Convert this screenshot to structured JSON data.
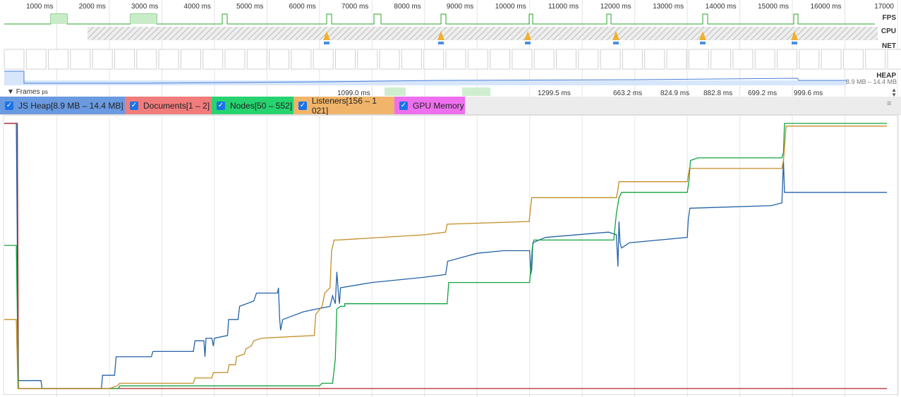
{
  "timeline": {
    "time_ticks": [
      "1000 ms",
      "2000 ms",
      "3000 ms",
      "4000 ms",
      "5000 ms",
      "6000 ms",
      "7000 ms",
      "8000 ms",
      "9000 ms",
      "10000 ms",
      "11000 ms",
      "12000 ms",
      "13000 ms",
      "14000 ms",
      "15000 ms",
      "16000 ms",
      "17000"
    ],
    "rows": {
      "fps": "FPS",
      "cpu": "CPU",
      "net": "NET",
      "heap": "HEAP"
    },
    "heap_range": "8.9 MB – 14.4 MB",
    "frames_label": "Frames",
    "frames_unit": "ps",
    "frame_times": [
      "1099.0 ms",
      "1299.5 ms",
      "663.2 ms",
      "824.9 ms",
      "882.8 ms",
      "699.2 ms",
      "999.6 ms"
    ]
  },
  "legend": {
    "items": [
      {
        "label": "JS Heap[8.9 MB – 14.4 MB]",
        "color": "#6a9ae0"
      },
      {
        "label": "Documents[1 – 2]",
        "color": "#f07c7c"
      },
      {
        "label": "Nodes[50 – 552]",
        "color": "#27d36f"
      },
      {
        "label": "Listeners[156 – 1 021]",
        "color": "#f0b46a"
      },
      {
        "label": "GPU Memory",
        "color": "#ee70ee"
      }
    ],
    "menu_icon": "menu-icon"
  },
  "chart_data": {
    "type": "line",
    "x_unit": "ms",
    "xlim": [
      0,
      17000
    ],
    "series": [
      {
        "name": "JS Heap",
        "color": "#2463a8",
        "range": [
          8.9,
          14.4
        ],
        "points": [
          [
            0,
            1
          ],
          [
            230,
            1
          ],
          [
            270,
            0.03
          ],
          [
            700,
            0.03
          ],
          [
            720,
            0.0
          ],
          [
            1500,
            0.0
          ],
          [
            1850,
            0.0
          ],
          [
            1870,
            0.05
          ],
          [
            2100,
            0.05
          ],
          [
            2130,
            0.12
          ],
          [
            2800,
            0.12
          ],
          [
            2830,
            0.14
          ],
          [
            3600,
            0.14
          ],
          [
            3630,
            0.18
          ],
          [
            3800,
            0.18
          ],
          [
            3820,
            0.12
          ],
          [
            3840,
            0.19
          ],
          [
            3950,
            0.19
          ],
          [
            3980,
            0.16
          ],
          [
            4000,
            0.19
          ],
          [
            4250,
            0.2
          ],
          [
            4270,
            0.26
          ],
          [
            4450,
            0.26
          ],
          [
            4480,
            0.31
          ],
          [
            4750,
            0.33
          ],
          [
            4800,
            0.36
          ],
          [
            5200,
            0.36
          ],
          [
            5220,
            0.38
          ],
          [
            5240,
            0.27
          ],
          [
            5260,
            0.22
          ],
          [
            5300,
            0.26
          ],
          [
            5700,
            0.29
          ],
          [
            6200,
            0.31
          ],
          [
            6250,
            0.35
          ],
          [
            6300,
            0.32
          ],
          [
            6330,
            0.44
          ],
          [
            6360,
            0.36
          ],
          [
            6380,
            0.32
          ],
          [
            6400,
            0.38
          ],
          [
            7000,
            0.4
          ],
          [
            8000,
            0.42
          ],
          [
            8400,
            0.43
          ],
          [
            8440,
            0.48
          ],
          [
            9000,
            0.51
          ],
          [
            9500,
            0.52
          ],
          [
            10000,
            0.52
          ],
          [
            10020,
            0.43
          ],
          [
            10040,
            0.45
          ],
          [
            10060,
            0.55
          ],
          [
            10300,
            0.57
          ],
          [
            11500,
            0.59
          ],
          [
            11650,
            0.58
          ],
          [
            11680,
            0.46
          ],
          [
            11700,
            0.63
          ],
          [
            11720,
            0.55
          ],
          [
            11750,
            0.53
          ],
          [
            11900,
            0.55
          ],
          [
            13000,
            0.57
          ],
          [
            13020,
            0.64
          ],
          [
            13050,
            0.68
          ],
          [
            14600,
            0.69
          ],
          [
            14800,
            0.7
          ],
          [
            14830,
            0.86
          ],
          [
            14850,
            0.74
          ],
          [
            14880,
            0.74
          ],
          [
            15300,
            0.74
          ],
          [
            16800,
            0.74
          ]
        ]
      },
      {
        "name": "Documents",
        "color": "#b3202a",
        "range": [
          1,
          2
        ],
        "points": [
          [
            0,
            1
          ],
          [
            250,
            1
          ],
          [
            270,
            0
          ],
          [
            16800,
            0
          ]
        ]
      },
      {
        "name": "Nodes",
        "color": "#10a33e",
        "range": [
          50,
          552
        ],
        "points": [
          [
            0,
            0.54
          ],
          [
            230,
            0.54
          ],
          [
            270,
            0.0
          ],
          [
            1350,
            0.0
          ],
          [
            1370,
            0.0
          ],
          [
            2170,
            0.0
          ],
          [
            2200,
            0.01
          ],
          [
            6000,
            0.01
          ],
          [
            6050,
            0.02
          ],
          [
            6250,
            0.02
          ],
          [
            6300,
            0.11
          ],
          [
            6330,
            0.3
          ],
          [
            6400,
            0.31
          ],
          [
            6480,
            0.31
          ],
          [
            6480,
            0.32
          ],
          [
            8430,
            0.32
          ],
          [
            8460,
            0.4
          ],
          [
            10000,
            0.4
          ],
          [
            10030,
            0.47
          ],
          [
            10050,
            0.53
          ],
          [
            10080,
            0.56
          ],
          [
            11600,
            0.56
          ],
          [
            11650,
            0.66
          ],
          [
            11700,
            0.72
          ],
          [
            11750,
            0.74
          ],
          [
            13000,
            0.74
          ],
          [
            13030,
            0.78
          ],
          [
            13060,
            0.86
          ],
          [
            13200,
            0.87
          ],
          [
            14800,
            0.87
          ],
          [
            14830,
            0.89
          ],
          [
            14850,
            1.0
          ],
          [
            16800,
            1.0
          ]
        ]
      },
      {
        "name": "Listeners",
        "color": "#c48d26",
        "range": [
          156,
          1021
        ],
        "points": [
          [
            0,
            0.26
          ],
          [
            230,
            0.26
          ],
          [
            260,
            0.0
          ],
          [
            2000,
            0.0
          ],
          [
            2150,
            0.01
          ],
          [
            2200,
            0.02
          ],
          [
            3600,
            0.02
          ],
          [
            3630,
            0.04
          ],
          [
            3950,
            0.04
          ],
          [
            3980,
            0.06
          ],
          [
            4250,
            0.06
          ],
          [
            4280,
            0.09
          ],
          [
            4400,
            0.09
          ],
          [
            4420,
            0.12
          ],
          [
            4570,
            0.13
          ],
          [
            4600,
            0.15
          ],
          [
            4700,
            0.16
          ],
          [
            4750,
            0.18
          ],
          [
            4900,
            0.19
          ],
          [
            5900,
            0.2
          ],
          [
            5930,
            0.28
          ],
          [
            6050,
            0.31
          ],
          [
            6100,
            0.36
          ],
          [
            6200,
            0.38
          ],
          [
            6230,
            0.52
          ],
          [
            6280,
            0.56
          ],
          [
            6350,
            0.56
          ],
          [
            8000,
            0.58
          ],
          [
            8400,
            0.59
          ],
          [
            8430,
            0.62
          ],
          [
            9990,
            0.63
          ],
          [
            10010,
            0.67
          ],
          [
            10040,
            0.72
          ],
          [
            11650,
            0.72
          ],
          [
            11680,
            0.75
          ],
          [
            11700,
            0.78
          ],
          [
            13000,
            0.78
          ],
          [
            13040,
            0.83
          ],
          [
            14800,
            0.83
          ],
          [
            14830,
            0.86
          ],
          [
            14850,
            0.91
          ],
          [
            14880,
            0.99
          ],
          [
            16800,
            0.99
          ]
        ]
      }
    ]
  }
}
